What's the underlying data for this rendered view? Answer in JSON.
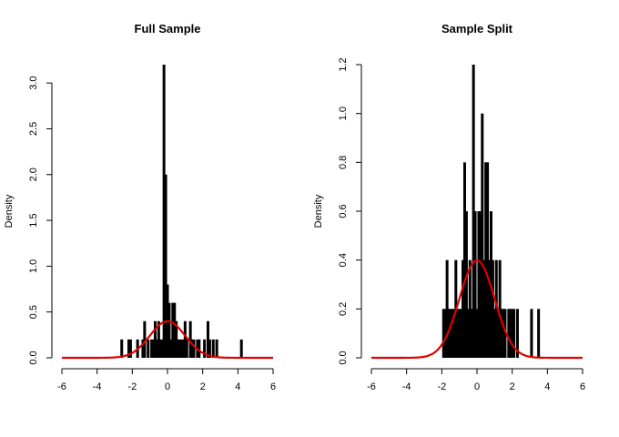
{
  "chart_data": [
    {
      "type": "bar",
      "title": "Full Sample",
      "xlabel": "",
      "ylabel": "Density",
      "xlim": [
        -6,
        6
      ],
      "ylim": [
        0,
        3.2
      ],
      "xticks": [
        -6,
        -4,
        -2,
        0,
        2,
        4,
        6
      ],
      "yticks": [
        0.0,
        0.5,
        1.0,
        1.5,
        2.0,
        2.5,
        3.0
      ],
      "ytick_labels": [
        "0.0",
        "0.5",
        "1.0",
        "1.5",
        "2.0",
        "2.5",
        "3.0"
      ],
      "bar_color": "#000000",
      "bars": [
        {
          "x": -2.6,
          "y": 0.2
        },
        {
          "x": -2.2,
          "y": 0.2
        },
        {
          "x": -2.1,
          "y": 0.2
        },
        {
          "x": -1.7,
          "y": 0.2
        },
        {
          "x": -1.4,
          "y": 0.2
        },
        {
          "x": -1.3,
          "y": 0.4
        },
        {
          "x": -1.1,
          "y": 0.2
        },
        {
          "x": -0.9,
          "y": 0.2
        },
        {
          "x": -0.8,
          "y": 0.2
        },
        {
          "x": -0.7,
          "y": 0.4
        },
        {
          "x": -0.6,
          "y": 0.2
        },
        {
          "x": -0.5,
          "y": 0.4
        },
        {
          "x": -0.4,
          "y": 0.2
        },
        {
          "x": -0.3,
          "y": 0.2
        },
        {
          "x": -0.2,
          "y": 3.2
        },
        {
          "x": -0.1,
          "y": 2.0
        },
        {
          "x": 0.0,
          "y": 0.8
        },
        {
          "x": 0.1,
          "y": 0.6
        },
        {
          "x": 0.2,
          "y": 0.2
        },
        {
          "x": 0.3,
          "y": 0.6
        },
        {
          "x": 0.4,
          "y": 0.6
        },
        {
          "x": 0.5,
          "y": 0.4
        },
        {
          "x": 0.6,
          "y": 0.2
        },
        {
          "x": 0.7,
          "y": 0.2
        },
        {
          "x": 0.8,
          "y": 0.2
        },
        {
          "x": 0.9,
          "y": 0.2
        },
        {
          "x": 1.0,
          "y": 0.4
        },
        {
          "x": 1.1,
          "y": 0.2
        },
        {
          "x": 1.3,
          "y": 0.4
        },
        {
          "x": 1.4,
          "y": 0.2
        },
        {
          "x": 1.5,
          "y": 0.2
        },
        {
          "x": 1.7,
          "y": 0.2
        },
        {
          "x": 1.8,
          "y": 0.2
        },
        {
          "x": 2.1,
          "y": 0.2
        },
        {
          "x": 2.3,
          "y": 0.4
        },
        {
          "x": 2.4,
          "y": 0.2
        },
        {
          "x": 2.6,
          "y": 0.2
        },
        {
          "x": 2.8,
          "y": 0.2
        },
        {
          "x": 4.2,
          "y": 0.2
        }
      ],
      "curve": {
        "kind": "standard normal density",
        "color": "#e00000"
      }
    },
    {
      "type": "bar",
      "title": "Sample Split",
      "xlabel": "",
      "ylabel": "Density",
      "xlim": [
        -6,
        6
      ],
      "ylim": [
        0,
        1.2
      ],
      "xticks": [
        -6,
        -4,
        -2,
        0,
        2,
        4,
        6
      ],
      "yticks": [
        0.0,
        0.2,
        0.4,
        0.6,
        0.8,
        1.0,
        1.2
      ],
      "ytick_labels": [
        "0.0",
        "0.2",
        "0.4",
        "0.6",
        "0.8",
        "1.0",
        "1.2"
      ],
      "bar_color": "#000000",
      "bars": [
        {
          "x": -1.9,
          "y": 0.2
        },
        {
          "x": -1.8,
          "y": 0.2
        },
        {
          "x": -1.7,
          "y": 0.4
        },
        {
          "x": -1.6,
          "y": 0.2
        },
        {
          "x": -1.5,
          "y": 0.2
        },
        {
          "x": -1.4,
          "y": 0.2
        },
        {
          "x": -1.3,
          "y": 0.2
        },
        {
          "x": -1.2,
          "y": 0.4
        },
        {
          "x": -1.1,
          "y": 0.2
        },
        {
          "x": -1.0,
          "y": 0.2
        },
        {
          "x": -0.9,
          "y": 0.2
        },
        {
          "x": -0.8,
          "y": 0.4
        },
        {
          "x": -0.7,
          "y": 0.8
        },
        {
          "x": -0.6,
          "y": 0.6
        },
        {
          "x": -0.5,
          "y": 0.2
        },
        {
          "x": -0.4,
          "y": 0.4
        },
        {
          "x": -0.3,
          "y": 0.2
        },
        {
          "x": -0.2,
          "y": 1.2
        },
        {
          "x": -0.1,
          "y": 0.6
        },
        {
          "x": 0.0,
          "y": 0.2
        },
        {
          "x": 0.1,
          "y": 0.6
        },
        {
          "x": 0.2,
          "y": 0.6
        },
        {
          "x": 0.3,
          "y": 1.0
        },
        {
          "x": 0.4,
          "y": 0.4
        },
        {
          "x": 0.5,
          "y": 0.8
        },
        {
          "x": 0.6,
          "y": 0.8
        },
        {
          "x": 0.7,
          "y": 0.4
        },
        {
          "x": 0.8,
          "y": 0.6
        },
        {
          "x": 0.9,
          "y": 0.4
        },
        {
          "x": 1.0,
          "y": 0.2
        },
        {
          "x": 1.1,
          "y": 0.4
        },
        {
          "x": 1.2,
          "y": 0.2
        },
        {
          "x": 1.3,
          "y": 0.4
        },
        {
          "x": 1.4,
          "y": 0.2
        },
        {
          "x": 1.5,
          "y": 0.2
        },
        {
          "x": 1.6,
          "y": 0.2
        },
        {
          "x": 1.8,
          "y": 0.2
        },
        {
          "x": 1.9,
          "y": 0.2
        },
        {
          "x": 2.0,
          "y": 0.2
        },
        {
          "x": 2.1,
          "y": 0.2
        },
        {
          "x": 2.3,
          "y": 0.2
        },
        {
          "x": 3.1,
          "y": 0.2
        },
        {
          "x": 3.5,
          "y": 0.2
        }
      ],
      "curve": {
        "kind": "standard normal density",
        "color": "#e00000"
      }
    }
  ]
}
